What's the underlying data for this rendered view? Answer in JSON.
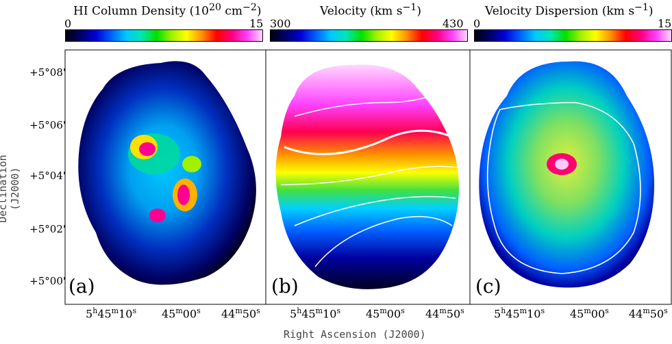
{
  "colorbars": [
    {
      "title_html": "HI Column Density (10<sup>20</sup> cm<sup>−2</sup>)",
      "min": "0",
      "max": "15"
    },
    {
      "title_html": "Velocity (km s<sup>−1</sup>)",
      "min": "300",
      "max": "430"
    },
    {
      "title_html": "Velocity Dispersion (km s<sup>−1</sup>)",
      "min": "0",
      "max": "15"
    }
  ],
  "y_axis": {
    "label": "Declination (J2000)",
    "ticks": [
      "+5°08'",
      "+5°06'",
      "+5°04'",
      "+5°02'",
      "+5°00'"
    ]
  },
  "x_axis": {
    "label": "Right Ascension (J2000)",
    "ticks_html": [
      "5<sup>h</sup>45<sup>m</sup>10<sup>s</sup>",
      "45<sup>m</sup>00<sup>s</sup>",
      "44<sup>m</sup>50<sup>s</sup>"
    ]
  },
  "panels": [
    {
      "label": "(a)",
      "map": "HI column density"
    },
    {
      "label": "(b)",
      "map": "velocity field"
    },
    {
      "label": "(c)",
      "map": "velocity dispersion"
    }
  ]
}
